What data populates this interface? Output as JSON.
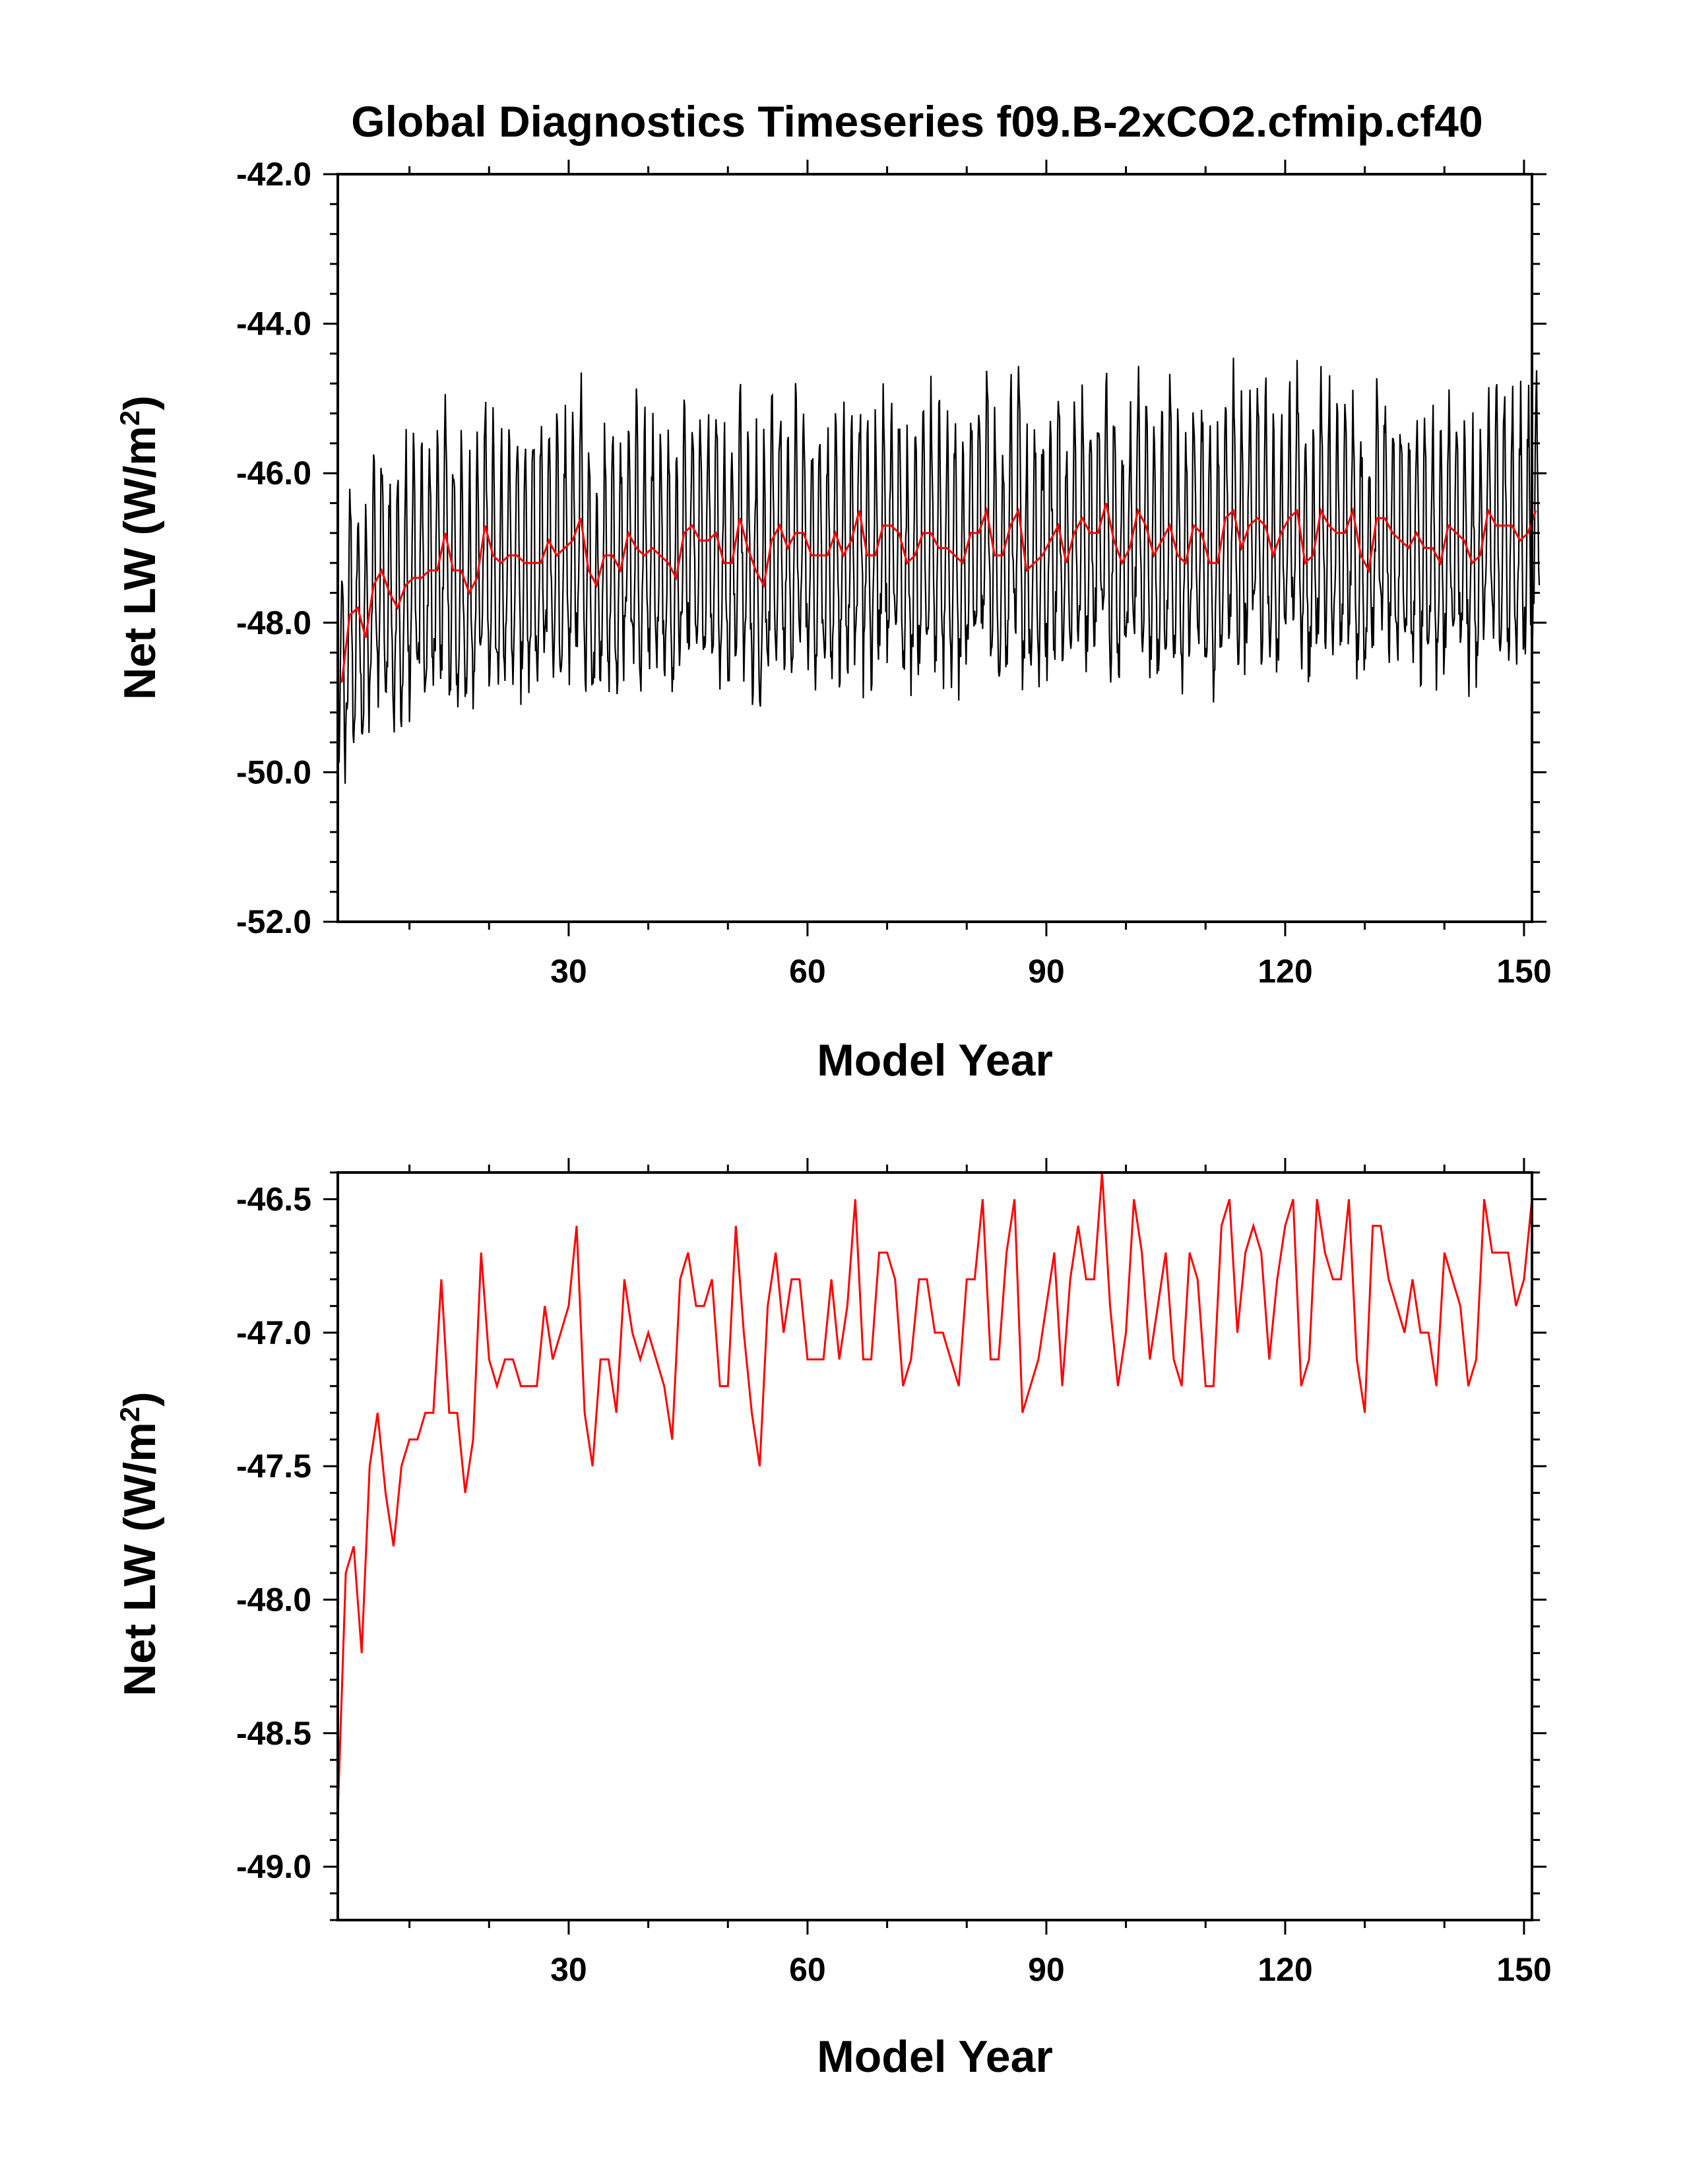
{
  "page": {
    "title": "Global Diagnostics Timeseries f09.B-2xCO2.cfmip.cf40"
  },
  "colors": {
    "monthly": "#000000",
    "annual": "#ff0000"
  },
  "chart_data": [
    {
      "type": "line",
      "xlabel": "Model Year",
      "ylabel_main": "Net LW (W/m",
      "ylabel_sup": "2",
      "ylabel_close": ")",
      "xlim": [
        1,
        151
      ],
      "ylim": [
        -52.0,
        -42.0
      ],
      "xticks": [
        30,
        60,
        90,
        120,
        150
      ],
      "xtick_labels": [
        "30",
        "60",
        "90",
        "120",
        "150"
      ],
      "yticks": [
        -52.0,
        -50.0,
        -48.0,
        -46.0,
        -44.0,
        -42.0
      ],
      "ytick_labels": [
        "-52.0",
        "-50.0",
        "-48.0",
        "-46.0",
        "-44.0",
        "-42.0"
      ],
      "series": [
        {
          "color": "#000000",
          "resolution": "monthly",
          "seasonal_cycle_min": -48.6,
          "seasonal_cycle_max": -44.8,
          "first_year_min": -50.7
        },
        {
          "color": "#ff0000",
          "resolution": "annual"
        }
      ]
    },
    {
      "type": "line",
      "xlabel": "Model Year",
      "ylabel_main": "Net LW (W/m",
      "ylabel_sup": "2",
      "ylabel_close": ")",
      "xlim": [
        1,
        151
      ],
      "ylim": [
        -49.2,
        -46.4
      ],
      "xticks": [
        30,
        60,
        90,
        120,
        150
      ],
      "xtick_labels": [
        "30",
        "60",
        "90",
        "120",
        "150"
      ],
      "yticks": [
        -49.0,
        -48.5,
        -48.0,
        -47.5,
        -47.0,
        -46.5
      ],
      "ytick_labels": [
        "-49.0",
        "-48.5",
        "-48.0",
        "-47.5",
        "-47.0",
        "-46.5"
      ],
      "series": [
        {
          "color": "#ff0000",
          "resolution": "annual",
          "x_start": 1,
          "values": [
            -48.8,
            -47.9,
            -47.8,
            -48.2,
            -47.5,
            -47.3,
            -47.6,
            -47.8,
            -47.5,
            -47.4,
            -47.4,
            -47.3,
            -47.3,
            -46.8,
            -47.3,
            -47.3,
            -47.6,
            -47.4,
            -46.7,
            -47.1,
            -47.2,
            -47.1,
            -47.1,
            -47.2,
            -47.2,
            -47.2,
            -46.9,
            -47.1,
            -47.0,
            -46.9,
            -46.6,
            -47.3,
            -47.5,
            -47.1,
            -47.1,
            -47.3,
            -46.8,
            -47.0,
            -47.1,
            -47.0,
            -47.1,
            -47.2,
            -47.4,
            -46.8,
            -46.7,
            -46.9,
            -46.9,
            -46.8,
            -47.2,
            -47.2,
            -46.6,
            -47.0,
            -47.3,
            -47.5,
            -46.9,
            -46.7,
            -47.0,
            -46.8,
            -46.8,
            -47.1,
            -47.1,
            -47.1,
            -46.8,
            -47.1,
            -46.9,
            -46.5,
            -47.1,
            -47.1,
            -46.7,
            -46.7,
            -46.8,
            -47.2,
            -47.1,
            -46.8,
            -46.8,
            -47.0,
            -47.0,
            -47.1,
            -47.2,
            -46.8,
            -46.8,
            -46.5,
            -47.1,
            -47.1,
            -46.7,
            -46.5,
            -47.3,
            -47.2,
            -47.1,
            -46.9,
            -46.7,
            -47.2,
            -46.8,
            -46.6,
            -46.8,
            -46.8,
            -46.4,
            -46.9,
            -47.2,
            -47.0,
            -46.5,
            -46.7,
            -47.1,
            -46.9,
            -46.7,
            -47.1,
            -47.2,
            -46.7,
            -46.8,
            -47.2,
            -47.2,
            -46.6,
            -46.5,
            -47.0,
            -46.7,
            -46.6,
            -46.7,
            -47.1,
            -46.8,
            -46.6,
            -46.5,
            -47.2,
            -47.1,
            -46.5,
            -46.7,
            -46.8,
            -46.8,
            -46.5,
            -47.1,
            -47.3,
            -46.6,
            -46.6,
            -46.8,
            -46.9,
            -47.0,
            -46.8,
            -47.0,
            -47.0,
            -47.2,
            -46.7,
            -46.8,
            -46.9,
            -47.2,
            -47.1,
            -46.5,
            -46.7,
            -46.7,
            -46.7,
            -46.9,
            -46.8,
            -46.5
          ]
        }
      ]
    }
  ]
}
